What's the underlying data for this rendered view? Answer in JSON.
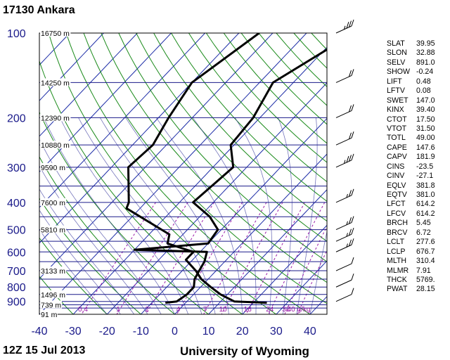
{
  "title": "17130  Ankara",
  "footer": {
    "time": "12Z 15 Jul 2013",
    "source": "University of Wyoming"
  },
  "indices": [
    {
      "key": "SLAT",
      "val": "39.95"
    },
    {
      "key": "SLON",
      "val": "32.88"
    },
    {
      "key": "SELV",
      "val": "891.0"
    },
    {
      "key": "SHOW",
      "val": "-0.24"
    },
    {
      "key": "LIFT",
      "val": "0.48"
    },
    {
      "key": "LFTV",
      "val": "0.08"
    },
    {
      "key": "SWET",
      "val": "147.0"
    },
    {
      "key": "KINX",
      "val": "39.40"
    },
    {
      "key": "CTOT",
      "val": "17.50"
    },
    {
      "key": "VTOT",
      "val": "31.50"
    },
    {
      "key": "TOTL",
      "val": "49.00"
    },
    {
      "key": "CAPE",
      "val": "147.6"
    },
    {
      "key": "CAPV",
      "val": "181.9"
    },
    {
      "key": "CINS",
      "val": "-23.5"
    },
    {
      "key": "CINV",
      "val": "-27.1"
    },
    {
      "key": "EQLV",
      "val": "381.8"
    },
    {
      "key": "EQTV",
      "val": "381.0"
    },
    {
      "key": "LFCT",
      "val": "614.2"
    },
    {
      "key": "LFCV",
      "val": "614.2"
    },
    {
      "key": "BRCH",
      "val": "5.45"
    },
    {
      "key": "BRCV",
      "val": "6.72"
    },
    {
      "key": "LCLT",
      "val": "277.6"
    },
    {
      "key": "LCLP",
      "val": "676.7"
    },
    {
      "key": "MLTH",
      "val": "310.4"
    },
    {
      "key": "MLMR",
      "val": "7.91"
    },
    {
      "key": "THCK",
      "val": "5769."
    },
    {
      "key": "PWAT",
      "val": "28.15"
    }
  ],
  "chart_data": {
    "type": "line",
    "xlim": [
      -40,
      45
    ],
    "ylim": [
      100,
      1000
    ],
    "x_ticks": [
      "-40",
      "-30",
      "-20",
      "-10",
      "0",
      "10",
      "20",
      "30",
      "40"
    ],
    "y_ticks": [
      {
        "p": 100,
        "label": "100"
      },
      {
        "p": 200,
        "label": "200"
      },
      {
        "p": 300,
        "label": "300"
      },
      {
        "p": 400,
        "label": "400"
      },
      {
        "p": 500,
        "label": "500"
      },
      {
        "p": 600,
        "label": "600"
      },
      {
        "p": 700,
        "label": "700"
      },
      {
        "p": 800,
        "label": "800"
      },
      {
        "p": 900,
        "label": "900"
      }
    ],
    "height_labels": [
      {
        "p": 100,
        "label": "16750 m"
      },
      {
        "p": 150,
        "label": "14250 m"
      },
      {
        "p": 200,
        "label": "12390 m"
      },
      {
        "p": 250,
        "label": "10880 m"
      },
      {
        "p": 300,
        "label": "9590 m"
      },
      {
        "p": 400,
        "label": "7600 m"
      },
      {
        "p": 500,
        "label": "5810 m"
      },
      {
        "p": 700,
        "label": "3133 m"
      },
      {
        "p": 850,
        "label": "1496 m"
      },
      {
        "p": 925,
        "label": "739 m"
      },
      {
        "p": 1000,
        "label": "91 m"
      }
    ],
    "mixing_ratio_labels": [
      "0.4",
      "1",
      "2",
      "4",
      "7",
      "10",
      "16",
      "24",
      "32",
      "40 g/kg"
    ],
    "mixing_ratios": [
      0.4,
      1,
      2,
      4,
      7,
      10,
      16,
      24,
      32,
      40
    ],
    "isobars": [
      100,
      150,
      200,
      250,
      300,
      350,
      400,
      450,
      500,
      550,
      600,
      650,
      700,
      750,
      800,
      850,
      900,
      925,
      950,
      1000
    ],
    "series": [
      {
        "name": "temperature",
        "color": "#000000",
        "points": [
          [
            -54,
            100
          ],
          [
            -60,
            150
          ],
          [
            -57,
            200
          ],
          [
            -54,
            250
          ],
          [
            -55,
            300
          ],
          [
            -45,
            400
          ],
          [
            -44,
            420
          ],
          [
            -24,
            520
          ],
          [
            -22,
            560
          ],
          [
            -12,
            600
          ],
          [
            -12,
            640
          ],
          [
            -6,
            700
          ],
          [
            -2,
            750
          ],
          [
            3,
            800
          ],
          [
            8,
            850
          ],
          [
            14,
            900
          ],
          [
            24,
            910
          ]
        ]
      },
      {
        "name": "dewpoint",
        "color": "#000000",
        "points": [
          [
            -26,
            100
          ],
          [
            -36,
            150
          ],
          [
            -32,
            200
          ],
          [
            -31,
            250
          ],
          [
            -24,
            300
          ],
          [
            -26,
            400
          ],
          [
            -17,
            450
          ],
          [
            -11,
            500
          ],
          [
            -10,
            560
          ],
          [
            -30,
            590
          ],
          [
            -8,
            600
          ],
          [
            -6,
            650
          ],
          [
            -5,
            700
          ],
          [
            -4,
            750
          ],
          [
            -2,
            800
          ],
          [
            -2,
            850
          ],
          [
            -3,
            900
          ],
          [
            -6,
            910
          ]
        ]
      }
    ],
    "wind_barbs": [
      {
        "p": 100,
        "speed": 25
      },
      {
        "p": 150,
        "speed": 20
      },
      {
        "p": 200,
        "speed": 20
      },
      {
        "p": 250,
        "speed": 20
      },
      {
        "p": 300,
        "speed": 25
      },
      {
        "p": 400,
        "speed": 15
      },
      {
        "p": 500,
        "speed": 15
      },
      {
        "p": 550,
        "speed": 15
      },
      {
        "p": 600,
        "speed": 15
      },
      {
        "p": 700,
        "speed": 10
      },
      {
        "p": 800,
        "speed": 10
      },
      {
        "p": 900,
        "speed": 10
      }
    ]
  }
}
